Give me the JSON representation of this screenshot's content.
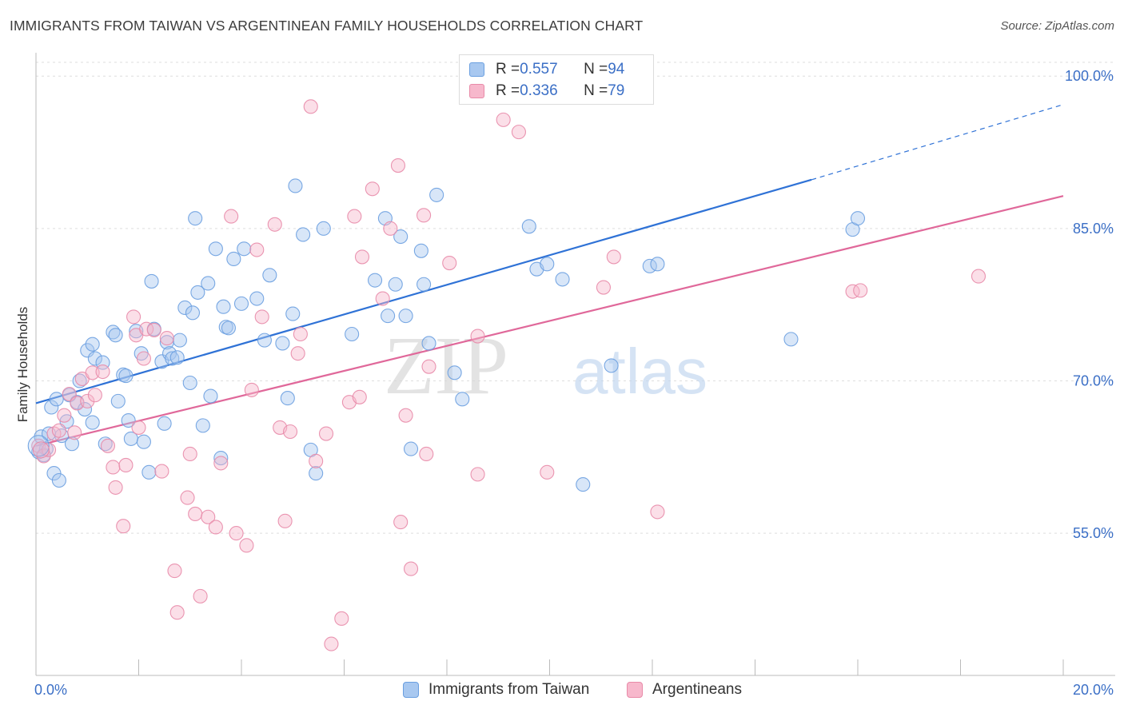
{
  "title": "IMMIGRANTS FROM TAIWAN VS ARGENTINEAN FAMILY HOUSEHOLDS CORRELATION CHART",
  "source": "Source: ZipAtlas.com",
  "watermark": {
    "zip": "ZIP",
    "atlas": "atlas"
  },
  "legend": {
    "series": [
      {
        "r_label": "R = ",
        "r_value": "0.557",
        "n_label": "N = ",
        "n_value": "94",
        "color": "#a8c8f0"
      },
      {
        "r_label": "R = ",
        "r_value": "0.336",
        "n_label": "N = ",
        "n_value": "79",
        "color": "#f7b8cc"
      }
    ]
  },
  "bottom_legend": [
    {
      "label": "Immigrants from Taiwan",
      "color": "#a8c8f0"
    },
    {
      "label": "Argentineans",
      "color": "#f7b8cc"
    }
  ],
  "chart_data": {
    "type": "scatter",
    "title": "IMMIGRANTS FROM TAIWAN VS ARGENTINEAN FAMILY HOUSEHOLDS CORRELATION CHART",
    "xlabel": "",
    "ylabel": "Family Households",
    "xlim": [
      0,
      20
    ],
    "ylim": [
      41,
      102.3
    ],
    "x_tick_labels": [
      "0.0%",
      "20.0%"
    ],
    "y_ticks": [
      55,
      70,
      85,
      100
    ],
    "y_tick_labels": [
      "55.0%",
      "70.0%",
      "85.0%",
      "100.0%"
    ],
    "grid": true,
    "legend_position": "top-center",
    "series": [
      {
        "name": "Immigrants from Taiwan",
        "color": "#6a9fe0",
        "fill": "#a8c8f0",
        "r": 0.557,
        "n": 94,
        "trend": {
          "x0": 0,
          "y0": 67.8,
          "x1": 15.1,
          "y1": 89.8,
          "dash_to_x": 20,
          "dash_to_y": 97.2
        },
        "points": [
          [
            0.05,
            63.0
          ],
          [
            0.1,
            64.5
          ],
          [
            0.15,
            62.7
          ],
          [
            0.2,
            63.3
          ],
          [
            0.25,
            64.8
          ],
          [
            0.3,
            67.4
          ],
          [
            0.35,
            60.9
          ],
          [
            0.4,
            68.2
          ],
          [
            0.45,
            60.2
          ],
          [
            0.5,
            64.6
          ],
          [
            0.6,
            66.0
          ],
          [
            0.65,
            68.6
          ],
          [
            0.7,
            63.8
          ],
          [
            0.8,
            67.9
          ],
          [
            0.85,
            70.0
          ],
          [
            0.95,
            67.2
          ],
          [
            1.0,
            73.0
          ],
          [
            1.1,
            73.6
          ],
          [
            1.15,
            72.2
          ],
          [
            1.3,
            71.8
          ],
          [
            1.35,
            63.8
          ],
          [
            1.5,
            74.8
          ],
          [
            1.55,
            74.5
          ],
          [
            1.6,
            68.0
          ],
          [
            1.7,
            70.6
          ],
          [
            1.75,
            70.5
          ],
          [
            1.8,
            66.1
          ],
          [
            1.85,
            64.3
          ],
          [
            1.95,
            74.9
          ],
          [
            2.05,
            72.7
          ],
          [
            2.1,
            64.0
          ],
          [
            2.2,
            61.0
          ],
          [
            2.25,
            79.8
          ],
          [
            2.3,
            75.1
          ],
          [
            2.45,
            71.9
          ],
          [
            2.5,
            65.8
          ],
          [
            2.55,
            73.8
          ],
          [
            2.6,
            72.7
          ],
          [
            2.65,
            72.2
          ],
          [
            2.75,
            72.3
          ],
          [
            2.8,
            74.0
          ],
          [
            2.9,
            77.2
          ],
          [
            3.0,
            69.8
          ],
          [
            3.05,
            76.7
          ],
          [
            3.1,
            86.0
          ],
          [
            3.15,
            78.7
          ],
          [
            3.25,
            65.6
          ],
          [
            3.35,
            79.6
          ],
          [
            3.4,
            68.5
          ],
          [
            3.5,
            83.0
          ],
          [
            3.6,
            62.4
          ],
          [
            3.65,
            77.3
          ],
          [
            3.7,
            75.3
          ],
          [
            3.75,
            75.2
          ],
          [
            3.85,
            82.0
          ],
          [
            4.0,
            77.6
          ],
          [
            4.05,
            83.0
          ],
          [
            4.3,
            78.1
          ],
          [
            4.45,
            74.0
          ],
          [
            4.8,
            73.7
          ],
          [
            4.9,
            68.3
          ],
          [
            5.0,
            76.6
          ],
          [
            5.05,
            89.2
          ],
          [
            5.2,
            84.4
          ],
          [
            5.35,
            63.2
          ],
          [
            5.45,
            60.9
          ],
          [
            5.6,
            85.0
          ],
          [
            6.15,
            74.6
          ],
          [
            6.6,
            79.9
          ],
          [
            6.8,
            86.0
          ],
          [
            6.85,
            76.4
          ],
          [
            7.0,
            79.5
          ],
          [
            7.1,
            84.2
          ],
          [
            7.2,
            76.4
          ],
          [
            7.3,
            63.3
          ],
          [
            7.5,
            82.8
          ],
          [
            7.55,
            79.5
          ],
          [
            7.65,
            73.7
          ],
          [
            7.8,
            88.3
          ],
          [
            8.15,
            70.8
          ],
          [
            8.3,
            68.2
          ],
          [
            9.6,
            85.2
          ],
          [
            9.75,
            81.0
          ],
          [
            9.95,
            81.5
          ],
          [
            10.25,
            80.0
          ],
          [
            10.65,
            59.8
          ],
          [
            11.2,
            71.5
          ],
          [
            11.95,
            81.3
          ],
          [
            12.1,
            81.5
          ],
          [
            14.7,
            74.1
          ],
          [
            15.9,
            84.9
          ],
          [
            16.0,
            86.0
          ],
          [
            1.1,
            65.9
          ],
          [
            4.55,
            80.4
          ]
        ]
      },
      {
        "name": "Argentineans",
        "color": "#e88aa8",
        "fill": "#f7b8cc",
        "r": 0.336,
        "n": 79,
        "trend": {
          "x0": 0,
          "y0": 63.6,
          "x1": 20,
          "y1": 88.2
        },
        "points": [
          [
            0.05,
            63.6
          ],
          [
            0.15,
            62.6
          ],
          [
            0.25,
            63.2
          ],
          [
            0.35,
            64.8
          ],
          [
            0.45,
            65.1
          ],
          [
            0.55,
            66.6
          ],
          [
            0.65,
            68.7
          ],
          [
            0.75,
            64.9
          ],
          [
            0.8,
            67.8
          ],
          [
            0.9,
            70.2
          ],
          [
            1.0,
            68.0
          ],
          [
            1.1,
            70.8
          ],
          [
            1.15,
            68.6
          ],
          [
            1.3,
            70.9
          ],
          [
            1.4,
            63.6
          ],
          [
            1.5,
            61.5
          ],
          [
            1.55,
            59.5
          ],
          [
            1.7,
            55.7
          ],
          [
            1.75,
            61.7
          ],
          [
            1.9,
            76.3
          ],
          [
            1.95,
            74.5
          ],
          [
            2.0,
            65.4
          ],
          [
            2.1,
            72.2
          ],
          [
            2.15,
            75.1
          ],
          [
            2.3,
            75.0
          ],
          [
            2.45,
            61.1
          ],
          [
            2.55,
            74.2
          ],
          [
            2.7,
            51.3
          ],
          [
            2.75,
            47.2
          ],
          [
            2.95,
            58.5
          ],
          [
            3.0,
            62.8
          ],
          [
            3.1,
            56.9
          ],
          [
            3.2,
            48.8
          ],
          [
            3.35,
            56.6
          ],
          [
            3.5,
            55.6
          ],
          [
            3.6,
            61.9
          ],
          [
            3.8,
            86.2
          ],
          [
            3.9,
            55.0
          ],
          [
            4.1,
            53.8
          ],
          [
            4.2,
            69.1
          ],
          [
            4.3,
            82.9
          ],
          [
            4.4,
            76.3
          ],
          [
            4.65,
            85.4
          ],
          [
            4.75,
            65.4
          ],
          [
            4.85,
            56.2
          ],
          [
            4.95,
            65.0
          ],
          [
            5.1,
            72.7
          ],
          [
            5.15,
            74.6
          ],
          [
            5.35,
            97.0
          ],
          [
            5.45,
            62.1
          ],
          [
            5.65,
            64.8
          ],
          [
            5.75,
            44.1
          ],
          [
            5.95,
            46.6
          ],
          [
            6.1,
            67.9
          ],
          [
            6.2,
            86.2
          ],
          [
            6.3,
            68.4
          ],
          [
            6.35,
            82.2
          ],
          [
            6.55,
            88.9
          ],
          [
            6.75,
            78.1
          ],
          [
            6.9,
            85.0
          ],
          [
            7.05,
            91.2
          ],
          [
            7.1,
            56.1
          ],
          [
            7.2,
            66.6
          ],
          [
            7.3,
            51.5
          ],
          [
            7.55,
            86.3
          ],
          [
            7.6,
            62.8
          ],
          [
            7.65,
            71.4
          ],
          [
            8.05,
            81.6
          ],
          [
            8.6,
            74.4
          ],
          [
            8.6,
            60.8
          ],
          [
            9.1,
            95.7
          ],
          [
            9.4,
            94.5
          ],
          [
            9.95,
            61.0
          ],
          [
            11.05,
            79.2
          ],
          [
            11.25,
            82.2
          ],
          [
            12.1,
            57.1
          ],
          [
            15.9,
            78.8
          ],
          [
            16.05,
            78.9
          ],
          [
            18.35,
            80.3
          ]
        ]
      }
    ]
  }
}
